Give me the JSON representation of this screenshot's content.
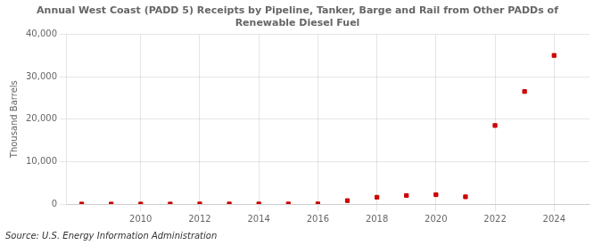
{
  "chart_data": {
    "type": "scatter",
    "title": "Annual West Coast (PADD 5) Receipts by Pipeline, Tanker, Barge and Rail from Other PADDs of\nRenewable Diesel Fuel",
    "ylabel": "Thousand Barrels",
    "annotation": "Source: U.S. Energy Information Administration",
    "x": [
      2008,
      2009,
      2010,
      2011,
      2012,
      2013,
      2014,
      2015,
      2016,
      2017,
      2018,
      2019,
      2020,
      2021,
      2022,
      2023,
      2024
    ],
    "values": [
      0,
      0,
      0,
      0,
      5,
      5,
      10,
      10,
      30,
      800,
      1600,
      2000,
      2200,
      1700,
      18500,
      26500,
      35000
    ],
    "color": "#cc0000",
    "marker": "square",
    "xlim": [
      2007.5,
      2025.2
    ],
    "xticks": [
      2010,
      2012,
      2014,
      2016,
      2018,
      2020,
      2022,
      2024
    ],
    "ylim": [
      0,
      40000
    ],
    "yticks": [
      0,
      {
        "value": 10000,
        "label": "10,000"
      },
      {
        "value": 20000,
        "label": "20,000"
      },
      {
        "value": 30000,
        "label": "30,000"
      },
      {
        "value": 40000,
        "label": "40,000"
      }
    ],
    "grid": true
  }
}
